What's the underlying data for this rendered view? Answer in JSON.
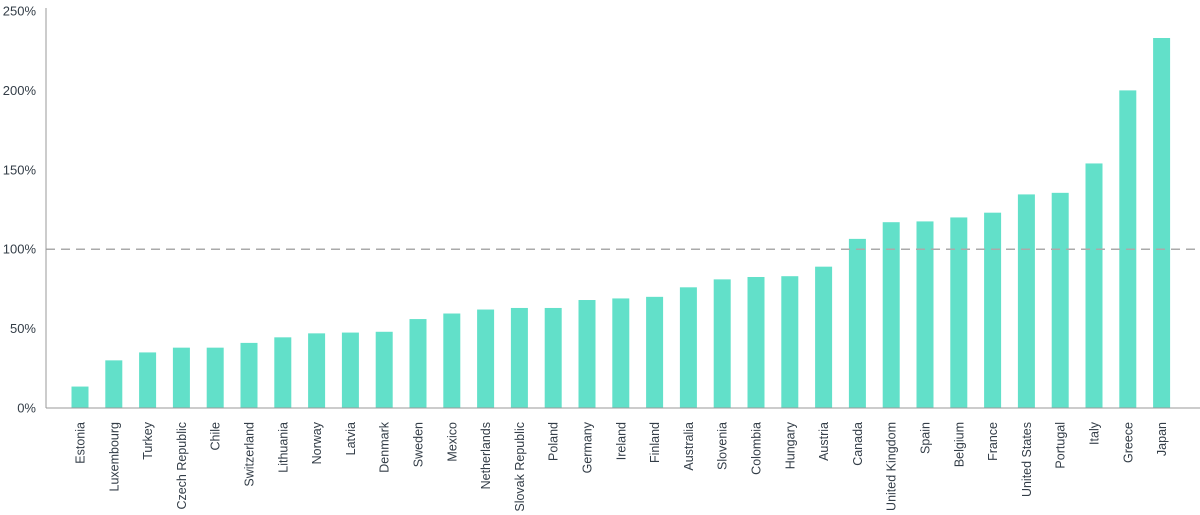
{
  "chart_data": {
    "type": "bar",
    "title": "",
    "xlabel": "",
    "ylabel": "",
    "ylim": [
      0,
      250
    ],
    "yticks": [
      0,
      50,
      100,
      150,
      200,
      250
    ],
    "ytick_labels": [
      "0%",
      "50%",
      "100%",
      "150%",
      "200%",
      "250%"
    ],
    "reference_line": 100,
    "grid": false,
    "bar_color": "#62E0C9",
    "reference_line_color": "#AAAAAA",
    "axis_color": "#999999",
    "categories": [
      "Estonia",
      "Luxembourg",
      "Turkey",
      "Czech Republic",
      "Chile",
      "Switzerland",
      "Lithuania",
      "Norway",
      "Latvia",
      "Denmark",
      "Sweden",
      "Mexico",
      "Netherlands",
      "Slovak Republic",
      "Poland",
      "Germany",
      "Ireland",
      "Finland",
      "Australia",
      "Slovenia",
      "Colombia",
      "Hungary",
      "Austria",
      "Canada",
      "United Kingdom",
      "Spain",
      "Belgium",
      "France",
      "United States",
      "Portugal",
      "Italy",
      "Greece",
      "Japan"
    ],
    "values": [
      13.5,
      30,
      35,
      38,
      38,
      41,
      44.5,
      47,
      47.5,
      48,
      56,
      59.5,
      62,
      63,
      63,
      68,
      69,
      70,
      76,
      81,
      82.5,
      83,
      89,
      106.5,
      117,
      117.5,
      120,
      123,
      134.5,
      135.5,
      154,
      200,
      233
    ]
  }
}
